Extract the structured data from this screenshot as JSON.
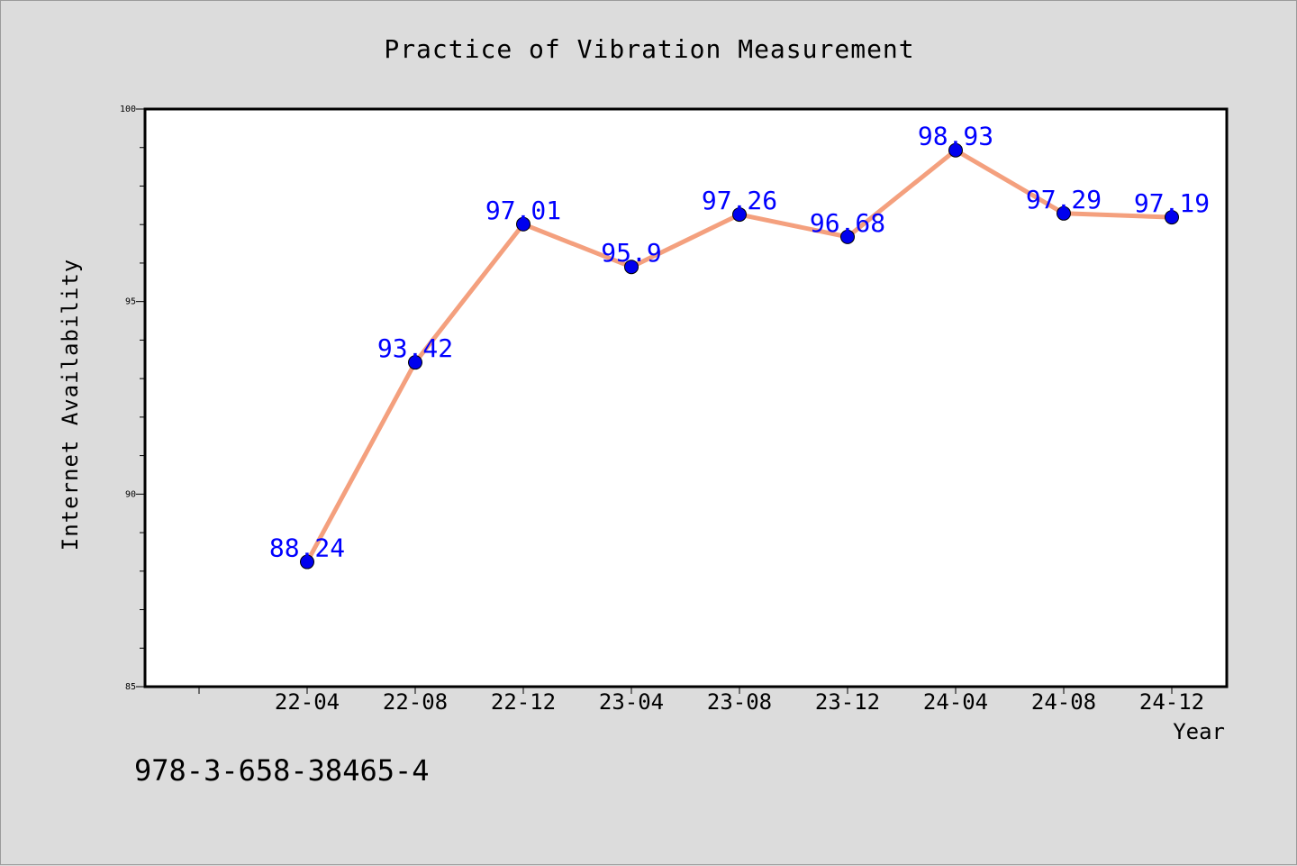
{
  "chart_data": {
    "type": "line",
    "title": "Practice of Vibration Measurement",
    "xlabel": "Year",
    "ylabel": "Internet Availability",
    "categories": [
      "22-04",
      "22-08",
      "22-12",
      "23-04",
      "23-08",
      "23-12",
      "24-04",
      "24-08",
      "24-12"
    ],
    "series": [
      {
        "values": [
          88.24,
          93.42,
          97.01,
          95.9,
          97.26,
          96.68,
          98.93,
          97.29,
          97.19
        ]
      }
    ],
    "data_labels": [
      "88.24",
      "93.42",
      "97.01",
      "95.9",
      "97.26",
      "96.68",
      "98.93",
      "97.29",
      "97.19"
    ],
    "ylim": [
      85,
      100
    ],
    "yticks": [
      85,
      90,
      95,
      100
    ],
    "grid": false,
    "colors": {
      "line": "#f4a07e",
      "marker": "#0000ee",
      "label": "#0000ff",
      "background": "#dcdcdc",
      "plot": "#ffffff"
    }
  },
  "annotation": "978-3-658-38465-4"
}
